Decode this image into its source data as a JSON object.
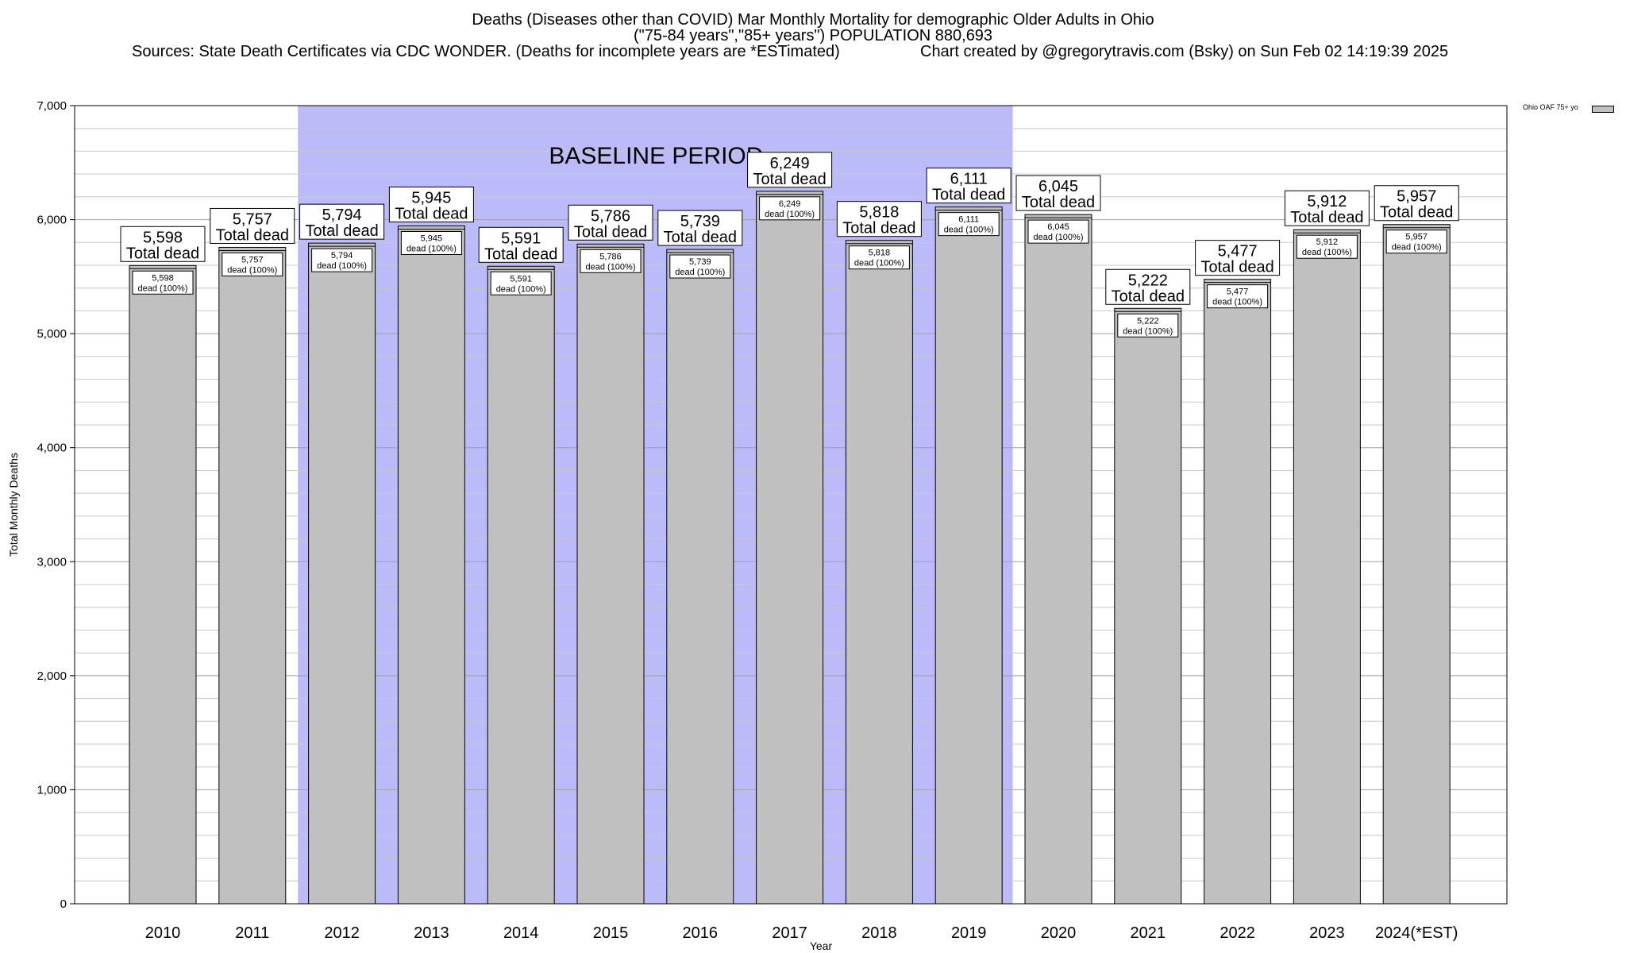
{
  "chart_data": {
    "type": "bar",
    "title": "Deaths (Diseases other than COVID) Mar Monthly Mortality for demographic Older Adults in Ohio",
    "subtitle": "(\"75-84 years\",\"85+ years\") POPULATION 880,693",
    "sources": "Sources: State Death Certificates via CDC WONDER. (Deaths for incomplete years are *ESTimated)",
    "credit": "Chart created by @gregorytravis.com (Bsky) on Sun Feb 02 14:19:39 2025",
    "xlabel": "Year",
    "ylabel": "Total Monthly Deaths",
    "ylim": [
      0,
      7000
    ],
    "yticks": [
      0,
      1000,
      2000,
      3000,
      4000,
      5000,
      6000,
      7000
    ],
    "ytick_labels": [
      "0",
      "1,000",
      "2,000",
      "3,000",
      "4,000",
      "5,000",
      "6,000",
      "7,000"
    ],
    "grid": true,
    "categories": [
      "2010",
      "2011",
      "2012",
      "2013",
      "2014",
      "2015",
      "2016",
      "2017",
      "2018",
      "2019",
      "2020",
      "2021",
      "2022",
      "2023",
      "2024(*EST)"
    ],
    "values": [
      5598,
      5757,
      5794,
      5945,
      5591,
      5786,
      5739,
      6249,
      5818,
      6111,
      6045,
      5222,
      5477,
      5912,
      5957
    ],
    "value_labels": [
      "5,598",
      "5,757",
      "5,794",
      "5,945",
      "5,591",
      "5,786",
      "5,739",
      "6,249",
      "5,818",
      "6,111",
      "6,045",
      "5,222",
      "5,477",
      "5,912",
      "5,957"
    ],
    "total_label": "Total dead",
    "inner_label": "dead (100%)",
    "baseline": {
      "label": "BASELINE PERIOD",
      "start": "2012",
      "end": "2019"
    },
    "legend": {
      "label": "Ohio OAF 75+ yo",
      "position": "top-right"
    },
    "colors": {
      "bar": "#c0c0c0",
      "baseline": "#bbbbfa",
      "grid": "#c8c8c8"
    }
  }
}
